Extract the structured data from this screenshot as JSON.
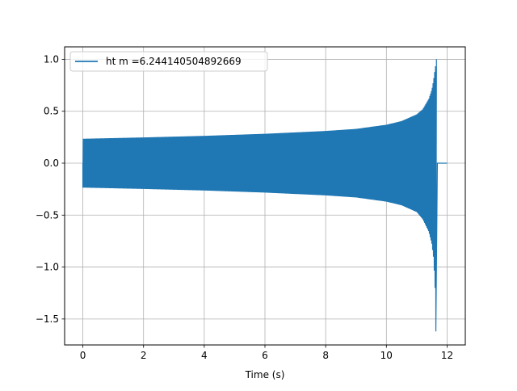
{
  "chart_data": {
    "type": "line",
    "title": "",
    "xlabel": "Time (s)",
    "ylabel": "",
    "xlim": [
      -0.6,
      12.6
    ],
    "ylim": [
      -1.75,
      1.12
    ],
    "x_ticks": [
      0,
      2,
      4,
      6,
      8,
      10,
      12
    ],
    "y_ticks": [
      -1.5,
      -1.0,
      -0.5,
      0.0,
      0.5,
      1.0
    ],
    "x_tick_labels": [
      "0",
      "2",
      "4",
      "6",
      "8",
      "10",
      "12"
    ],
    "y_tick_labels": [
      "−1.5",
      "−1.0",
      "−0.5",
      "0.0",
      "0.5",
      "1.0"
    ],
    "grid": true,
    "legend_position": "upper-left",
    "series": [
      {
        "name": "ht m =6.244140504892669",
        "color": "#1f77b4",
        "x_start": 0.0,
        "merger_time": 11.68,
        "x_end": 12.0,
        "upper_envelope": [
          [
            0.0,
            0.235
          ],
          [
            2.0,
            0.248
          ],
          [
            4.0,
            0.263
          ],
          [
            6.0,
            0.283
          ],
          [
            8.0,
            0.31
          ],
          [
            9.0,
            0.33
          ],
          [
            10.0,
            0.37
          ],
          [
            10.5,
            0.405
          ],
          [
            11.0,
            0.47
          ],
          [
            11.2,
            0.52
          ],
          [
            11.4,
            0.62
          ],
          [
            11.5,
            0.71
          ],
          [
            11.55,
            0.79
          ],
          [
            11.6,
            0.9
          ],
          [
            11.65,
            1.0
          ]
        ],
        "lower_envelope": [
          [
            0.0,
            -0.235
          ],
          [
            2.0,
            -0.248
          ],
          [
            4.0,
            -0.263
          ],
          [
            6.0,
            -0.283
          ],
          [
            8.0,
            -0.31
          ],
          [
            9.0,
            -0.33
          ],
          [
            10.0,
            -0.37
          ],
          [
            10.5,
            -0.405
          ],
          [
            11.0,
            -0.47
          ],
          [
            11.2,
            -0.54
          ],
          [
            11.4,
            -0.66
          ],
          [
            11.5,
            -0.78
          ],
          [
            11.55,
            -0.9
          ],
          [
            11.6,
            -1.15
          ],
          [
            11.63,
            -1.62
          ]
        ],
        "post_merger_value": 0.0
      }
    ]
  }
}
